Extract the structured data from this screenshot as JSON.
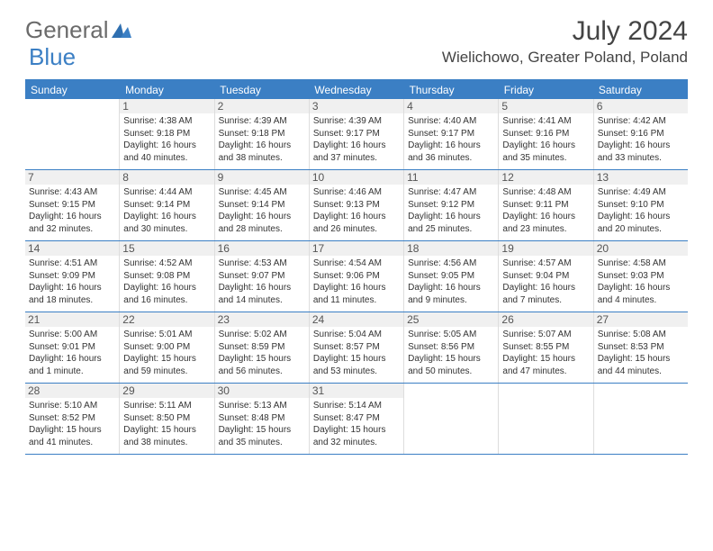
{
  "logo": {
    "text1": "General",
    "text2": "Blue"
  },
  "title": "July 2024",
  "location": "Wielichowo, Greater Poland, Poland",
  "colors": {
    "header_bg": "#3b7fc4",
    "header_text": "#ffffff",
    "body_bg": "#ffffff",
    "daynum_bg": "#f0f0f0",
    "text": "#333333",
    "logo_gray": "#6b6b6b",
    "logo_blue": "#3b7fc4"
  },
  "day_names": [
    "Sunday",
    "Monday",
    "Tuesday",
    "Wednesday",
    "Thursday",
    "Friday",
    "Saturday"
  ],
  "weeks": [
    [
      null,
      {
        "n": "1",
        "sr": "4:38 AM",
        "ss": "9:18 PM",
        "dl": "16 hours and 40 minutes."
      },
      {
        "n": "2",
        "sr": "4:39 AM",
        "ss": "9:18 PM",
        "dl": "16 hours and 38 minutes."
      },
      {
        "n": "3",
        "sr": "4:39 AM",
        "ss": "9:17 PM",
        "dl": "16 hours and 37 minutes."
      },
      {
        "n": "4",
        "sr": "4:40 AM",
        "ss": "9:17 PM",
        "dl": "16 hours and 36 minutes."
      },
      {
        "n": "5",
        "sr": "4:41 AM",
        "ss": "9:16 PM",
        "dl": "16 hours and 35 minutes."
      },
      {
        "n": "6",
        "sr": "4:42 AM",
        "ss": "9:16 PM",
        "dl": "16 hours and 33 minutes."
      }
    ],
    [
      {
        "n": "7",
        "sr": "4:43 AM",
        "ss": "9:15 PM",
        "dl": "16 hours and 32 minutes."
      },
      {
        "n": "8",
        "sr": "4:44 AM",
        "ss": "9:14 PM",
        "dl": "16 hours and 30 minutes."
      },
      {
        "n": "9",
        "sr": "4:45 AM",
        "ss": "9:14 PM",
        "dl": "16 hours and 28 minutes."
      },
      {
        "n": "10",
        "sr": "4:46 AM",
        "ss": "9:13 PM",
        "dl": "16 hours and 26 minutes."
      },
      {
        "n": "11",
        "sr": "4:47 AM",
        "ss": "9:12 PM",
        "dl": "16 hours and 25 minutes."
      },
      {
        "n": "12",
        "sr": "4:48 AM",
        "ss": "9:11 PM",
        "dl": "16 hours and 23 minutes."
      },
      {
        "n": "13",
        "sr": "4:49 AM",
        "ss": "9:10 PM",
        "dl": "16 hours and 20 minutes."
      }
    ],
    [
      {
        "n": "14",
        "sr": "4:51 AM",
        "ss": "9:09 PM",
        "dl": "16 hours and 18 minutes."
      },
      {
        "n": "15",
        "sr": "4:52 AM",
        "ss": "9:08 PM",
        "dl": "16 hours and 16 minutes."
      },
      {
        "n": "16",
        "sr": "4:53 AM",
        "ss": "9:07 PM",
        "dl": "16 hours and 14 minutes."
      },
      {
        "n": "17",
        "sr": "4:54 AM",
        "ss": "9:06 PM",
        "dl": "16 hours and 11 minutes."
      },
      {
        "n": "18",
        "sr": "4:56 AM",
        "ss": "9:05 PM",
        "dl": "16 hours and 9 minutes."
      },
      {
        "n": "19",
        "sr": "4:57 AM",
        "ss": "9:04 PM",
        "dl": "16 hours and 7 minutes."
      },
      {
        "n": "20",
        "sr": "4:58 AM",
        "ss": "9:03 PM",
        "dl": "16 hours and 4 minutes."
      }
    ],
    [
      {
        "n": "21",
        "sr": "5:00 AM",
        "ss": "9:01 PM",
        "dl": "16 hours and 1 minute."
      },
      {
        "n": "22",
        "sr": "5:01 AM",
        "ss": "9:00 PM",
        "dl": "15 hours and 59 minutes."
      },
      {
        "n": "23",
        "sr": "5:02 AM",
        "ss": "8:59 PM",
        "dl": "15 hours and 56 minutes."
      },
      {
        "n": "24",
        "sr": "5:04 AM",
        "ss": "8:57 PM",
        "dl": "15 hours and 53 minutes."
      },
      {
        "n": "25",
        "sr": "5:05 AM",
        "ss": "8:56 PM",
        "dl": "15 hours and 50 minutes."
      },
      {
        "n": "26",
        "sr": "5:07 AM",
        "ss": "8:55 PM",
        "dl": "15 hours and 47 minutes."
      },
      {
        "n": "27",
        "sr": "5:08 AM",
        "ss": "8:53 PM",
        "dl": "15 hours and 44 minutes."
      }
    ],
    [
      {
        "n": "28",
        "sr": "5:10 AM",
        "ss": "8:52 PM",
        "dl": "15 hours and 41 minutes."
      },
      {
        "n": "29",
        "sr": "5:11 AM",
        "ss": "8:50 PM",
        "dl": "15 hours and 38 minutes."
      },
      {
        "n": "30",
        "sr": "5:13 AM",
        "ss": "8:48 PM",
        "dl": "15 hours and 35 minutes."
      },
      {
        "n": "31",
        "sr": "5:14 AM",
        "ss": "8:47 PM",
        "dl": "15 hours and 32 minutes."
      },
      null,
      null,
      null
    ]
  ],
  "labels": {
    "sunrise": "Sunrise:",
    "sunset": "Sunset:",
    "daylight": "Daylight:"
  }
}
